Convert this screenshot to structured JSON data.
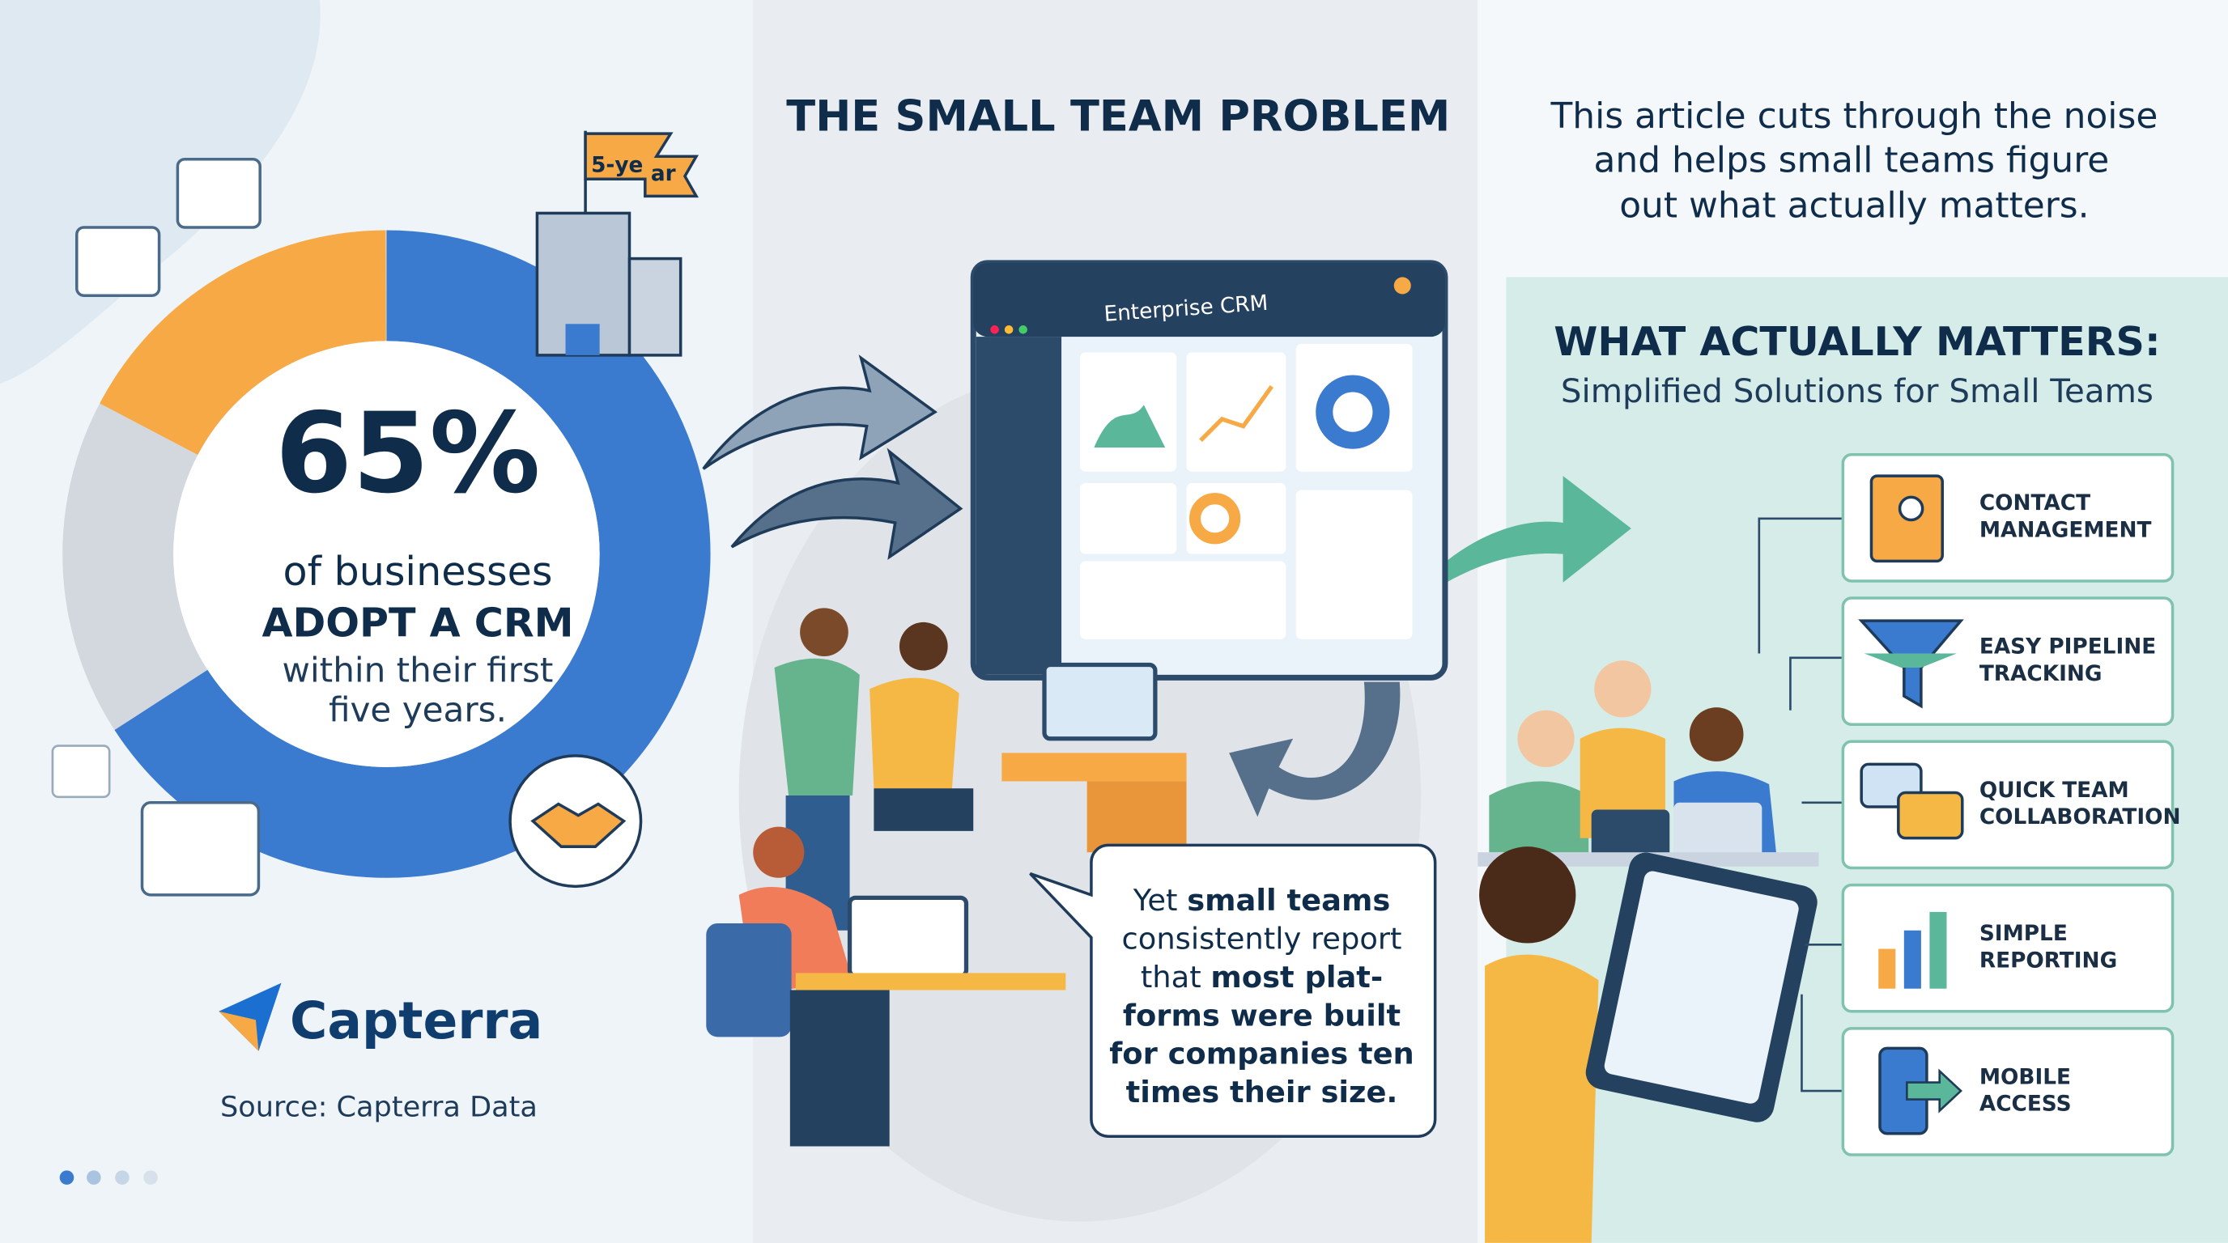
{
  "stat": {
    "value": "65%",
    "lines": [
      "of businesses",
      "ADOPT A CRM",
      "within their first",
      "five years."
    ],
    "badge": [
      "5-ye",
      "ar"
    ]
  },
  "brand": {
    "name": "Capterra",
    "source": "Source: Capterra Data"
  },
  "problem": {
    "title": "THE SMALL TEAM PROBLEM",
    "screen_title": "Enterprise CRM",
    "callout": [
      [
        "Yet",
        "small teams"
      ],
      [
        "consistently report"
      ],
      [
        "that",
        "most plat-"
      ],
      [
        "forms were built"
      ],
      [
        "for companies ten"
      ],
      [
        "times their size."
      ]
    ]
  },
  "intro": [
    "This article cuts through the noise",
    "and helps small teams figure",
    "out what actually matters."
  ],
  "matters": {
    "title": "WHAT ACTUALLY MATTERS:",
    "subtitle": "Simplified Solutions for Small Teams",
    "items": [
      [
        "CONTACT",
        "MANAGEMENT"
      ],
      [
        "EASY PIPELINE",
        "TRACKING"
      ],
      [
        "QUICK TEAM",
        "COLLABORATION"
      ],
      [
        "SIMPLE",
        "REPORTING"
      ],
      [
        "MOBILE",
        "ACCESS"
      ]
    ]
  }
}
